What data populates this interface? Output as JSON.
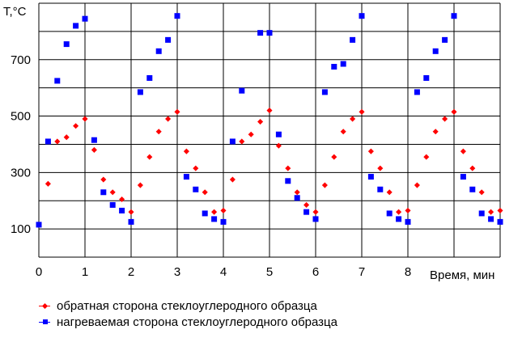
{
  "chart_data": {
    "type": "scatter",
    "ylabel": "T,°C",
    "xlabel": "Время, мин",
    "xlim": [
      0,
      10
    ],
    "ylim": [
      0,
      900
    ],
    "xticks": [
      "0",
      "1",
      "2",
      "3",
      "4",
      "5",
      "6",
      "7",
      "8"
    ],
    "yticks": [
      "100",
      "300",
      "500",
      "700"
    ],
    "grid": true,
    "legend_position": "bottom",
    "series": [
      {
        "name": "обратная сторона стеклоуглеродного образца",
        "color": "#ff0000",
        "marker": "diamond",
        "points": [
          [
            0.2,
            260
          ],
          [
            0.4,
            410
          ],
          [
            0.6,
            425
          ],
          [
            0.8,
            465
          ],
          [
            1.0,
            490
          ],
          [
            1.2,
            380
          ],
          [
            1.4,
            275
          ],
          [
            1.6,
            230
          ],
          [
            1.8,
            205
          ],
          [
            2.0,
            160
          ],
          [
            2.2,
            255
          ],
          [
            2.4,
            355
          ],
          [
            2.6,
            445
          ],
          [
            2.8,
            490
          ],
          [
            3.0,
            515
          ],
          [
            3.2,
            375
          ],
          [
            3.4,
            315
          ],
          [
            3.6,
            230
          ],
          [
            3.8,
            160
          ],
          [
            4.0,
            165
          ],
          [
            4.2,
            275
          ],
          [
            4.4,
            410
          ],
          [
            4.6,
            435
          ],
          [
            4.8,
            480
          ],
          [
            5.0,
            520
          ],
          [
            5.2,
            395
          ],
          [
            5.4,
            315
          ],
          [
            5.6,
            230
          ],
          [
            5.8,
            185
          ],
          [
            6.0,
            160
          ],
          [
            6.2,
            255
          ],
          [
            6.4,
            355
          ],
          [
            6.6,
            445
          ],
          [
            6.8,
            490
          ],
          [
            7.0,
            515
          ],
          [
            7.2,
            375
          ],
          [
            7.4,
            315
          ],
          [
            7.6,
            230
          ],
          [
            7.8,
            160
          ],
          [
            8.0,
            165
          ],
          [
            8.2,
            255
          ],
          [
            8.4,
            355
          ],
          [
            8.6,
            445
          ],
          [
            8.8,
            490
          ],
          [
            9.0,
            515
          ],
          [
            9.2,
            375
          ],
          [
            9.4,
            315
          ],
          [
            9.6,
            230
          ],
          [
            9.8,
            160
          ],
          [
            10.0,
            165
          ]
        ]
      },
      {
        "name": "нагреваемая сторона стеклоуглеродного образца",
        "color": "#0000ff",
        "marker": "square",
        "points": [
          [
            0.0,
            115
          ],
          [
            0.2,
            410
          ],
          [
            0.4,
            625
          ],
          [
            0.6,
            755
          ],
          [
            0.8,
            820
          ],
          [
            1.0,
            845
          ],
          [
            1.2,
            415
          ],
          [
            1.4,
            230
          ],
          [
            1.6,
            185
          ],
          [
            1.8,
            165
          ],
          [
            2.0,
            125
          ],
          [
            2.2,
            585
          ],
          [
            2.4,
            635
          ],
          [
            2.6,
            730
          ],
          [
            2.8,
            770
          ],
          [
            3.0,
            855
          ],
          [
            3.2,
            285
          ],
          [
            3.4,
            240
          ],
          [
            3.6,
            155
          ],
          [
            3.8,
            135
          ],
          [
            4.0,
            125
          ],
          [
            4.2,
            410
          ],
          [
            4.4,
            590
          ],
          [
            4.8,
            795
          ],
          [
            5.0,
            795
          ],
          [
            5.2,
            435
          ],
          [
            5.4,
            270
          ],
          [
            5.6,
            210
          ],
          [
            5.8,
            160
          ],
          [
            6.0,
            135
          ],
          [
            6.2,
            585
          ],
          [
            6.4,
            675
          ],
          [
            6.6,
            685
          ],
          [
            6.8,
            770
          ],
          [
            7.0,
            855
          ],
          [
            7.2,
            285
          ],
          [
            7.4,
            240
          ],
          [
            7.6,
            155
          ],
          [
            7.8,
            135
          ],
          [
            8.0,
            125
          ],
          [
            8.2,
            585
          ],
          [
            8.4,
            635
          ],
          [
            8.6,
            730
          ],
          [
            8.8,
            770
          ],
          [
            9.0,
            855
          ],
          [
            9.2,
            285
          ],
          [
            9.4,
            240
          ],
          [
            9.6,
            155
          ],
          [
            9.8,
            135
          ],
          [
            10.0,
            125
          ]
        ]
      }
    ]
  }
}
